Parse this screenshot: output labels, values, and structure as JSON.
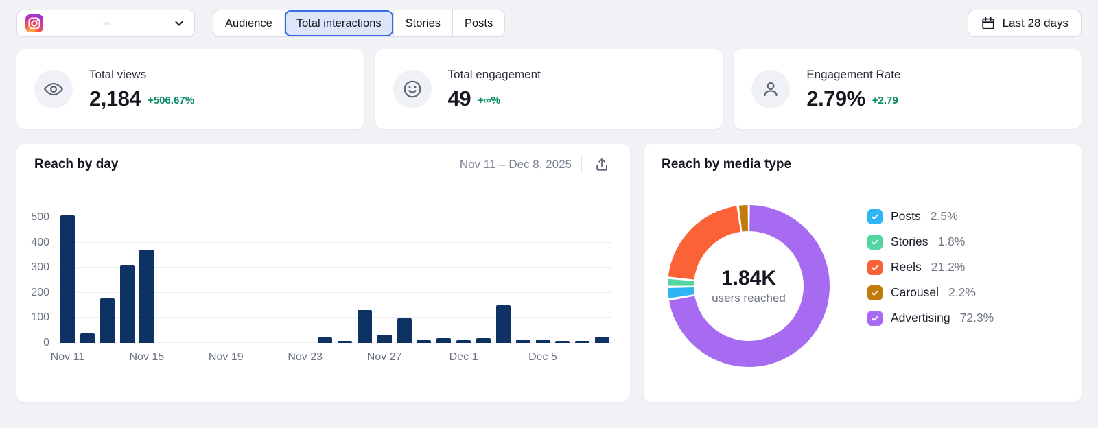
{
  "colors": {
    "accent_blue": "#3C6AE4",
    "selected_tab_bg": "#DCE5F9",
    "positive_green": "#0A8A66",
    "bar_navy": "#0F3264",
    "page_bg": "#F1F2F6"
  },
  "topbar": {
    "account": {
      "platform": "Instagram",
      "name": ""
    },
    "tabs": [
      {
        "label": "Audience",
        "selected": false
      },
      {
        "label": "Total interactions",
        "selected": true
      },
      {
        "label": "Stories",
        "selected": false
      },
      {
        "label": "Posts",
        "selected": false
      }
    ],
    "date_filter_label": "Last 28 days"
  },
  "stats": [
    {
      "icon": "eye-icon",
      "label": "Total views",
      "value": "2,184",
      "delta": "+506.67%"
    },
    {
      "icon": "smiley-icon",
      "label": "Total engagement",
      "value": "49",
      "delta": "+∞%"
    },
    {
      "icon": "person-icon",
      "label": "Engagement Rate",
      "value": "2.79%",
      "delta": "+2.79"
    }
  ],
  "chart_data": [
    {
      "type": "bar",
      "title": "Reach by day",
      "date_range": "Nov 11 – Dec 8, 2025",
      "xlabel": "",
      "ylabel": "",
      "ylim": [
        0,
        500
      ],
      "yticks": [
        0,
        100,
        200,
        300,
        400,
        500
      ],
      "grid": true,
      "bar_color": "#0F3264",
      "categories": [
        "Nov 11",
        "Nov 12",
        "Nov 13",
        "Nov 14",
        "Nov 15",
        "Nov 16",
        "Nov 17",
        "Nov 18",
        "Nov 19",
        "Nov 20",
        "Nov 21",
        "Nov 22",
        "Nov 23",
        "Nov 24",
        "Nov 25",
        "Nov 26",
        "Nov 27",
        "Nov 28",
        "Nov 29",
        "Nov 30",
        "Dec 1",
        "Dec 2",
        "Dec 3",
        "Dec 4",
        "Dec 5",
        "Dec 6",
        "Dec 7",
        "Dec 8"
      ],
      "values": [
        508,
        38,
        177,
        310,
        372,
        0,
        0,
        0,
        0,
        0,
        0,
        0,
        0,
        23,
        9,
        130,
        32,
        98,
        10,
        18,
        10,
        19,
        150,
        13,
        13,
        7,
        8,
        24
      ],
      "xtick_labels": [
        {
          "index": 0,
          "label": "Nov 11"
        },
        {
          "index": 4,
          "label": "Nov 15"
        },
        {
          "index": 8,
          "label": "Nov 19"
        },
        {
          "index": 12,
          "label": "Nov 23"
        },
        {
          "index": 16,
          "label": "Nov 27"
        },
        {
          "index": 20,
          "label": "Dec 1"
        },
        {
          "index": 24,
          "label": "Dec 5"
        }
      ]
    },
    {
      "type": "pie",
      "title": "Reach by media type",
      "donut": true,
      "center_value": "1.84K",
      "center_label": "users reached",
      "legend_position": "right",
      "legend_checkboxes_checked": true,
      "segments": [
        {
          "name": "Posts",
          "pct": 2.5,
          "pct_label": "2.5%",
          "color": "#2FB4F4"
        },
        {
          "name": "Stories",
          "pct": 1.8,
          "pct_label": "1.8%",
          "color": "#55D6A1"
        },
        {
          "name": "Reels",
          "pct": 21.2,
          "pct_label": "21.2%",
          "color": "#FB6238"
        },
        {
          "name": "Carousel",
          "pct": 2.2,
          "pct_label": "2.2%",
          "color": "#C07B0B"
        },
        {
          "name": "Advertising",
          "pct": 72.3,
          "pct_label": "72.3%",
          "color": "#A76BF2"
        }
      ],
      "order_clockwise_from_top": [
        "Advertising",
        "Posts",
        "Stories",
        "Reels",
        "Carousel"
      ]
    }
  ]
}
